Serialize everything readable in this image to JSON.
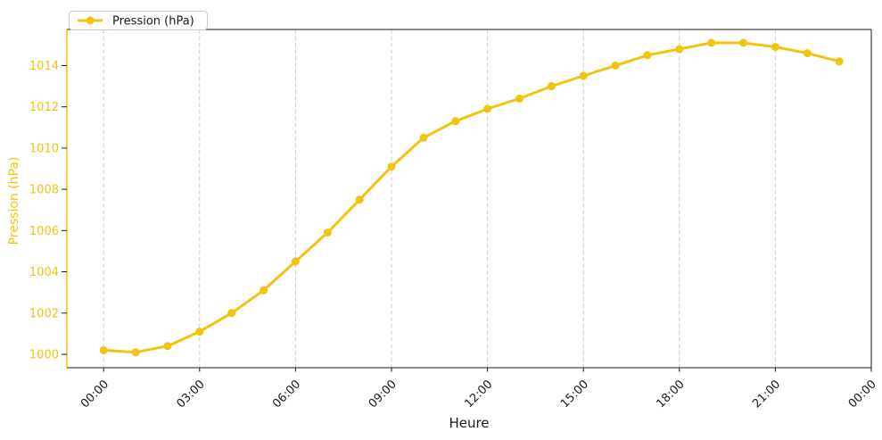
{
  "chart_data": {
    "type": "line",
    "title": "",
    "xlabel": "Heure",
    "ylabel": "Pression (hPa)",
    "legend": {
      "label": "Pression (hPa)",
      "position": "upper-left"
    },
    "x_tick_labels": [
      "00:00",
      "03:00",
      "06:00",
      "09:00",
      "12:00",
      "15:00",
      "18:00",
      "21:00",
      "00:00"
    ],
    "x_tick_hours": [
      0,
      3,
      6,
      9,
      12,
      15,
      18,
      21,
      24
    ],
    "y_ticks": [
      1000,
      1002,
      1004,
      1006,
      1008,
      1010,
      1012,
      1014
    ],
    "xlim_hours": [
      -1.15,
      24.0
    ],
    "ylim": [
      999.35,
      1015.75
    ],
    "grid": "vertical-dashed-only",
    "series": [
      {
        "name": "Pression (hPa)",
        "color": "#F2C40F",
        "marker": "circle",
        "line_width": 3,
        "x_hours": [
          0,
          1,
          2,
          3,
          4,
          5,
          6,
          7,
          8,
          9,
          10,
          11,
          12,
          13,
          14,
          15,
          16,
          17,
          18,
          19,
          20,
          21,
          22,
          23
        ],
        "values": [
          1000.2,
          1000.1,
          1000.4,
          1001.1,
          1002.0,
          1003.1,
          1004.5,
          1005.9,
          1007.5,
          1009.1,
          1010.5,
          1011.3,
          1011.9,
          1012.4,
          1013.0,
          1013.5,
          1014.0,
          1014.5,
          1014.8,
          1015.1,
          1015.1,
          1014.9,
          1014.6,
          1014.2
        ]
      }
    ],
    "colors": {
      "axis_accent": "#F2C40F",
      "grid": "#cccccc",
      "spine": "#1a1a1a",
      "x_tick_label": "#1a1a1a",
      "legend_border": "#cccccc",
      "background": "#ffffff"
    }
  }
}
